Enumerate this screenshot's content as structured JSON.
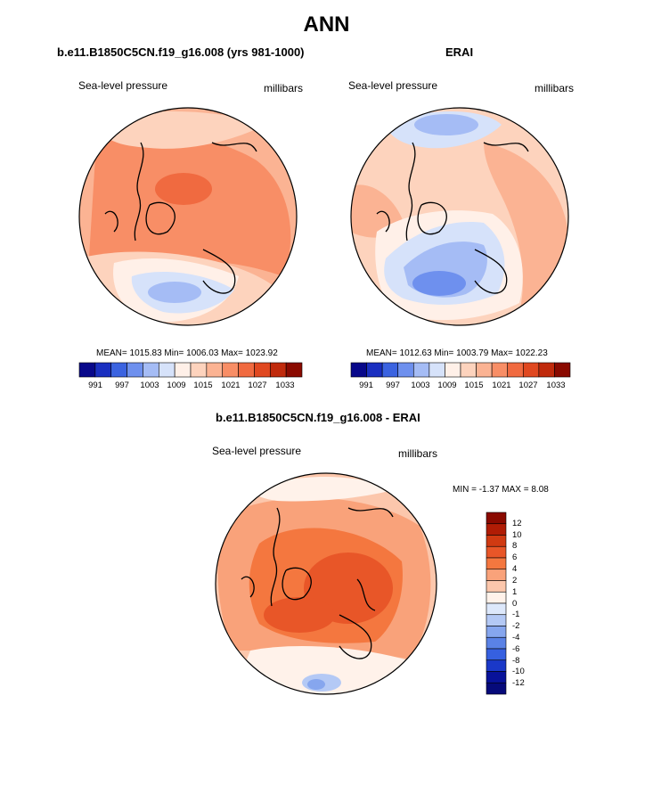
{
  "page": {
    "title": "ANN"
  },
  "panels": [
    {
      "title": "b.e11.B1850C5CN.f19_g16.008 (yrs 981-1000)",
      "field": "Sea-level pressure",
      "units": "millibars",
      "stats": {
        "mean": "1015.83",
        "min": "1006.03",
        "max": "1023.92"
      },
      "stats_text": "MEAN= 1015.83  Min= 1006.03  Max= 1023.92"
    },
    {
      "title": "ERAI",
      "field": "Sea-level pressure",
      "units": "millibars",
      "stats": {
        "mean": "1012.63",
        "min": "1003.79",
        "max": "1022.23"
      },
      "stats_text": "MEAN= 1012.63  Min= 1003.79  Max= 1022.23"
    },
    {
      "title": "b.e11.B1850C5CN.f19_g16.008 - ERAI",
      "field": "Sea-level pressure",
      "units": "millibars",
      "stats": {
        "min": "-1.37",
        "max": "8.08"
      },
      "stats_text": "MIN =  -1.37 MAX =   8.08"
    }
  ],
  "colorbar_abs": {
    "labels": [
      "991",
      "997",
      "1003",
      "1009",
      "1015",
      "1021",
      "1027",
      "1033"
    ],
    "colors": [
      "#08088a",
      "#1a2fc0",
      "#3b63e0",
      "#6e90ee",
      "#a5bcf5",
      "#d6e2fa",
      "#fff0e8",
      "#fdd3bd",
      "#fbb393",
      "#f88e66",
      "#f06a40",
      "#e04820",
      "#c02a0c",
      "#8a0a00"
    ]
  },
  "colorbar_diff": {
    "labels": [
      "12",
      "10",
      "8",
      "6",
      "4",
      "2",
      "1",
      "0",
      "-1",
      "-2",
      "-4",
      "-6",
      "-8",
      "-10",
      "-12"
    ],
    "colors": [
      "#8a0a00",
      "#b01c05",
      "#d03a12",
      "#e85628",
      "#f4773f",
      "#f9a27a",
      "#fcc7ac",
      "#fff2ea",
      "#dde8fb",
      "#b4c9f5",
      "#86a6ee",
      "#5a82e6",
      "#3660e0",
      "#1a38c8",
      "#08129a",
      "#060a7a"
    ]
  },
  "chart_data": [
    {
      "type": "heatmap",
      "projection": "north-polar-stereographic",
      "title": "b.e11.B1850C5CN.f19_g16.008 (yrs 981-1000)",
      "variable": "Sea-level pressure",
      "units": "millibars",
      "mean": 1015.83,
      "min": 1006.03,
      "max": 1023.92,
      "contour_levels": [
        991,
        994,
        997,
        1000,
        1003,
        1006,
        1009,
        1012,
        1015,
        1018,
        1021,
        1024,
        1027,
        1030,
        1033
      ]
    },
    {
      "type": "heatmap",
      "projection": "north-polar-stereographic",
      "title": "ERAI",
      "variable": "Sea-level pressure",
      "units": "millibars",
      "mean": 1012.63,
      "min": 1003.79,
      "max": 1022.23,
      "contour_levels": [
        991,
        994,
        997,
        1000,
        1003,
        1006,
        1009,
        1012,
        1015,
        1018,
        1021,
        1024,
        1027,
        1030,
        1033
      ]
    },
    {
      "type": "heatmap",
      "projection": "north-polar-stereographic",
      "title": "b.e11.B1850C5CN.f19_g16.008 - ERAI",
      "variable": "Sea-level pressure",
      "units": "millibars",
      "min": -1.37,
      "max": 8.08,
      "contour_levels": [
        -12,
        -10,
        -8,
        -6,
        -4,
        -2,
        -1,
        0,
        1,
        2,
        4,
        6,
        8,
        10,
        12
      ]
    }
  ]
}
